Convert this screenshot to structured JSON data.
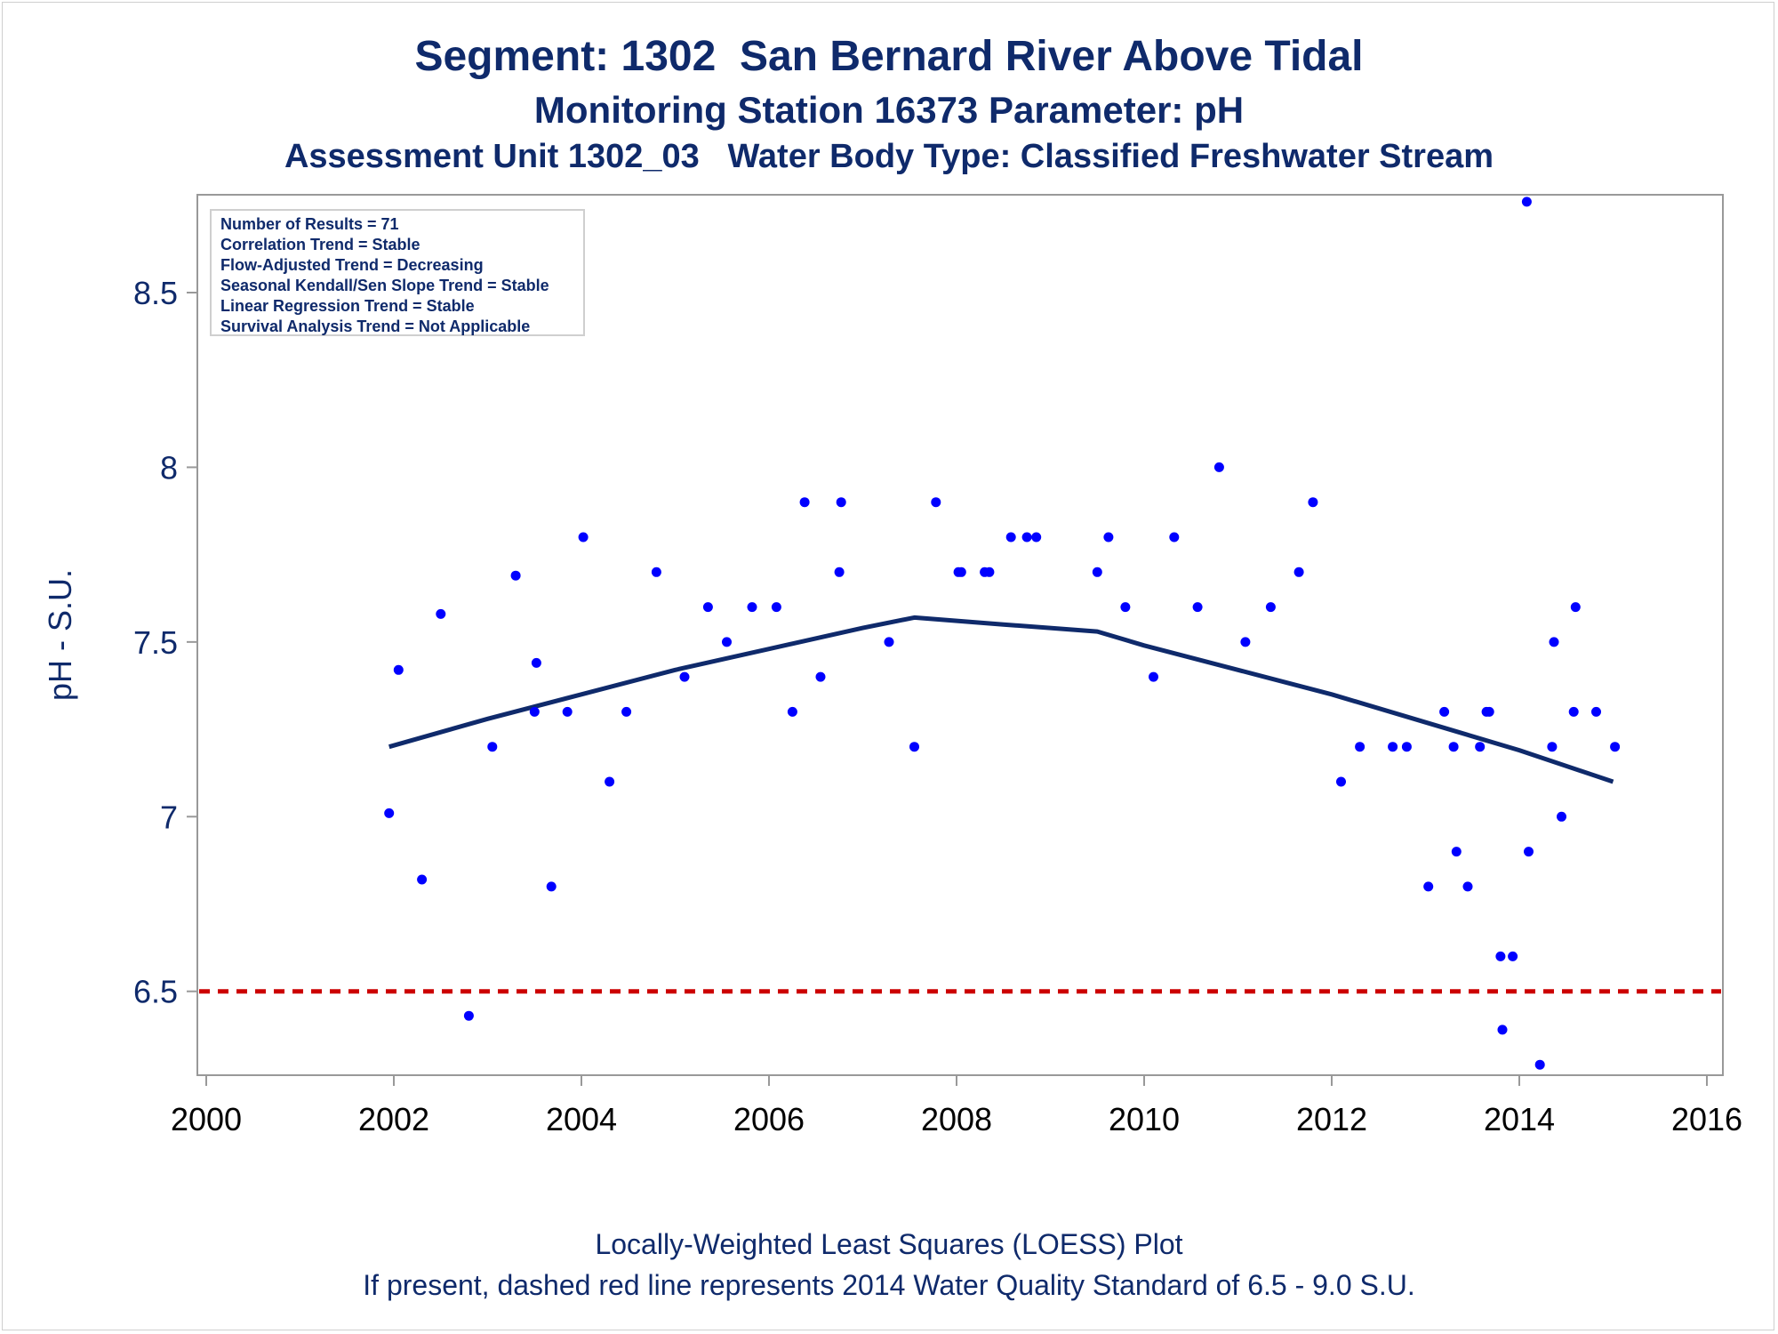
{
  "titles": [
    "Segment: 1302  San Bernard River Above Tidal",
    "Monitoring Station 16373 Parameter: pH",
    "Assessment Unit 1302_03   Water Body Type: Classified Freshwater Stream"
  ],
  "stats_box": [
    "Number of Results = 71",
    "Correlation Trend = Stable",
    "Flow-Adjusted Trend = Decreasing",
    "Seasonal Kendall/Sen Slope Trend = Stable",
    "Linear Regression Trend = Stable",
    "Survival Analysis Trend = Not Applicable"
  ],
  "footnotes": [
    "Locally-Weighted Least Squares (LOESS) Plot",
    "If present, dashed red line represents 2014 Water Quality Standard of 6.5 - 9.0 S.U."
  ],
  "chart_data": {
    "type": "scatter",
    "ylabel": "pH - S.U.",
    "xlabel": "",
    "xlim": [
      2000,
      2016
    ],
    "ylim": [
      6.26,
      8.78
    ],
    "x_ticks": [
      2000,
      2002,
      2004,
      2006,
      2008,
      2010,
      2012,
      2014,
      2016
    ],
    "y_ticks": [
      6.5,
      7,
      7.5,
      8,
      8.5
    ],
    "x_tick_labels": [
      "2000",
      "2002",
      "2004",
      "2006",
      "2008",
      "2010",
      "2012",
      "2014",
      "2016"
    ],
    "y_tick_labels": [
      "6.5",
      "7",
      "7.5",
      "8",
      "8.5"
    ],
    "grid": false,
    "colors": {
      "points": "#0000ff",
      "loess": "#0f2a6b",
      "standard_line": "#cc0000",
      "text": "#0f2a6b",
      "axis": "#999999"
    },
    "series": [
      {
        "kind": "points",
        "x": [
          2001.95,
          2002.05,
          2002.3,
          2002.5,
          2002.8,
          2003.05,
          2003.3,
          2003.5,
          2003.52,
          2003.68,
          2003.85,
          2004.02,
          2004.3,
          2004.48,
          2004.8,
          2005.1,
          2005.35,
          2005.55,
          2005.82,
          2006.08,
          2006.25,
          2006.38,
          2006.55,
          2006.75,
          2006.77,
          2007.28,
          2007.55,
          2007.78,
          2008.02,
          2008.05,
          2008.3,
          2008.35,
          2008.58,
          2008.75,
          2008.85,
          2009.5,
          2009.62,
          2009.8,
          2010.1,
          2010.32,
          2010.57,
          2010.8,
          2011.08,
          2011.35,
          2011.65,
          2011.8,
          2012.1,
          2012.3,
          2012.65,
          2012.8,
          2013.03,
          2013.2,
          2013.3,
          2013.33,
          2013.45,
          2013.58,
          2013.65,
          2013.68,
          2013.8,
          2013.82,
          2013.93,
          2014.08,
          2014.1,
          2014.22,
          2014.35,
          2014.37,
          2014.45,
          2014.58,
          2014.6,
          2014.82,
          2015.02
        ],
        "y": [
          7.01,
          7.42,
          6.82,
          7.58,
          6.43,
          7.2,
          7.69,
          7.3,
          7.44,
          6.8,
          7.3,
          7.8,
          7.1,
          7.3,
          7.7,
          7.4,
          7.6,
          7.5,
          7.6,
          7.6,
          7.3,
          7.9,
          7.4,
          7.7,
          7.9,
          7.5,
          7.2,
          7.9,
          7.7,
          7.7,
          7.7,
          7.7,
          7.8,
          7.8,
          7.8,
          7.7,
          7.8,
          7.6,
          7.4,
          7.8,
          7.6,
          8.0,
          7.5,
          7.6,
          7.7,
          7.9,
          7.1,
          7.2,
          7.2,
          7.2,
          6.8,
          7.3,
          7.2,
          6.9,
          6.8,
          7.2,
          7.3,
          7.3,
          6.6,
          6.39,
          6.6,
          8.76,
          6.9,
          6.29,
          7.2,
          7.5,
          7.0,
          7.3,
          7.6,
          7.3,
          7.2
        ]
      },
      {
        "kind": "loess",
        "x": [
          2001.95,
          2003.0,
          2004.0,
          2005.0,
          2006.0,
          2007.0,
          2007.55,
          2008.5,
          2009.5,
          2010.0,
          2011.0,
          2012.0,
          2013.0,
          2014.0,
          2015.0
        ],
        "y": [
          7.2,
          7.28,
          7.35,
          7.42,
          7.48,
          7.54,
          7.57,
          7.55,
          7.53,
          7.49,
          7.42,
          7.35,
          7.27,
          7.19,
          7.1
        ]
      }
    ],
    "reference_line": {
      "y": 6.5,
      "style": "dashed"
    }
  }
}
